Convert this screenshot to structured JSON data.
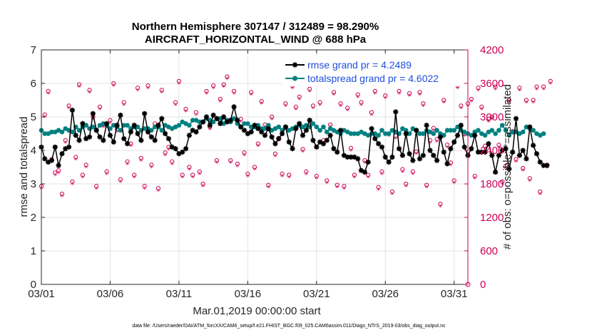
{
  "chart_data": {
    "type": "line",
    "title": "Northern Hemisphere 307147 / 312489 = 98.290%",
    "subtitle": "AIRCRAFT_HORIZONTAL_WIND @ 688 hPa",
    "xlabel": "Mar.01,2019 00:00:00 start",
    "ylabel": "rmse and totalspread",
    "ylabel_right": "# of obs: o=possible; *=assimilated",
    "footnote": "data file: /Users/raeder/DAI/ATM_forcXX/CAM6_setup/f.e21.FHIST_BGC.f09_025.CAM6assim.011/Diags_NTrS_2019-03/obs_diag_output.nc",
    "xlim": [
      0,
      31
    ],
    "ylim": [
      0,
      7
    ],
    "ylim_right": [
      0,
      4200
    ],
    "x_ticks": [
      0,
      5,
      10,
      15,
      20,
      25,
      30
    ],
    "x_tick_labels": [
      "03/01",
      "03/06",
      "03/11",
      "03/16",
      "03/21",
      "03/26",
      "03/31"
    ],
    "y_ticks": [
      0,
      1,
      2,
      3,
      4,
      5,
      6,
      7
    ],
    "y_tick_labels": [
      "0",
      "1",
      "2",
      "3",
      "4",
      "5",
      "6",
      "7"
    ],
    "y_ticks_right": [
      0,
      600,
      1200,
      1800,
      2400,
      3000,
      3600,
      4200
    ],
    "y_tick_labels_right": [
      "0",
      "600",
      "1200",
      "1800",
      "2400",
      "3000",
      "3600",
      "4200"
    ],
    "grid": true,
    "legend": {
      "location": "top-right",
      "entries": [
        "rmse grand pr = 4.2489",
        "totalspread grand pr = 4.6022"
      ]
    },
    "colors": {
      "rmse": "#000000",
      "totalspread": "#008080",
      "obs": "#cc0055",
      "legend_text": "#1f4fe0",
      "grid": "#e3e3e3",
      "axis": "#262626"
    },
    "series": [
      {
        "name": "rmse",
        "step_days": 0.25,
        "values": [
          4.1,
          3.75,
          3.65,
          3.7,
          4.1,
          3.55,
          3.9,
          4.05,
          4.1,
          5.2,
          4.45,
          4.3,
          4.8,
          4.35,
          4.4,
          5.1,
          4.6,
          4.4,
          4.3,
          4.8,
          4.45,
          4.25,
          4.75,
          5.05,
          4.35,
          4.2,
          4.55,
          4.75,
          4.5,
          4.3,
          5.1,
          4.55,
          4.4,
          4.3,
          4.75,
          4.95,
          4.5,
          4.35,
          4.1,
          4.05,
          3.9,
          3.95,
          4.05,
          4.45,
          4.6,
          4.55,
          4.7,
          4.85,
          5.0,
          4.75,
          5.05,
          4.95,
          4.8,
          5.0,
          4.85,
          4.9,
          5.3,
          4.9,
          4.7,
          4.6,
          4.5,
          4.55,
          4.75,
          4.65,
          4.55,
          4.45,
          4.65,
          4.4,
          4.2,
          4.35,
          4.5,
          4.7,
          4.25,
          4.05,
          4.65,
          4.8,
          4.45,
          4.6,
          4.9,
          4.3,
          4.1,
          4.25,
          4.2,
          4.3,
          4.45,
          4.05,
          3.95,
          4.6,
          3.85,
          3.8,
          3.8,
          3.8,
          3.75,
          3.4,
          3.35,
          3.65,
          4.65,
          4.35,
          4.2,
          4.1,
          3.8,
          3.65,
          3.8,
          5.15,
          4.05,
          3.85,
          4.5,
          3.9,
          3.7,
          4.6,
          3.75,
          3.85,
          4.75,
          4.0,
          3.85,
          3.7,
          4.4,
          3.95,
          3.6,
          4.05,
          4.25,
          4.45,
          4.75,
          4.1,
          3.85,
          4.05,
          4.45,
          3.95,
          3.95,
          3.95,
          4.2,
          3.85,
          3.35,
          3.85,
          4.0,
          4.05,
          3.45,
          3.95,
          4.95,
          3.85,
          4.0,
          3.75,
          4.7,
          4.15,
          3.9,
          3.65,
          3.55,
          3.55
        ]
      },
      {
        "name": "totalspread",
        "step_days": 0.25,
        "values": [
          4.6,
          4.5,
          4.5,
          4.55,
          4.55,
          4.6,
          4.55,
          4.65,
          4.6,
          4.55,
          4.7,
          4.6,
          4.7,
          4.75,
          4.65,
          4.7,
          4.6,
          4.75,
          4.8,
          4.75,
          4.65,
          4.75,
          4.7,
          4.6,
          4.75,
          4.75,
          4.65,
          4.7,
          4.7,
          4.6,
          4.65,
          4.65,
          4.6,
          4.7,
          4.7,
          4.6,
          4.75,
          4.7,
          4.65,
          4.7,
          4.75,
          4.85,
          4.8,
          4.75,
          4.9,
          4.9,
          4.85,
          4.85,
          4.95,
          4.9,
          4.85,
          4.95,
          4.95,
          4.8,
          4.9,
          4.85,
          4.95,
          4.8,
          4.7,
          4.8,
          4.8,
          4.7,
          4.7,
          4.75,
          4.65,
          4.65,
          4.75,
          4.6,
          4.65,
          4.7,
          4.6,
          4.7,
          4.6,
          4.65,
          4.7,
          4.75,
          4.7,
          4.75,
          4.7,
          4.8,
          4.7,
          4.6,
          4.7,
          4.55,
          4.65,
          4.6,
          4.55,
          4.5,
          4.6,
          4.55,
          4.5,
          4.5,
          4.5,
          4.55,
          4.5,
          4.45,
          4.5,
          4.5,
          4.45,
          4.6,
          4.5,
          4.5,
          4.6,
          4.55,
          4.5,
          4.65,
          4.6,
          4.5,
          4.65,
          4.6,
          4.5,
          4.5,
          4.6,
          4.55,
          4.5,
          4.6,
          4.5,
          4.45,
          4.6,
          4.6,
          4.6,
          4.7,
          4.6,
          4.55,
          4.5,
          4.45,
          4.55,
          4.6,
          4.5,
          4.45,
          4.55,
          4.6,
          4.5,
          4.6,
          4.75,
          4.6,
          4.45,
          4.55,
          4.55,
          4.5,
          4.55,
          4.7,
          4.65,
          4.6,
          4.5,
          4.45,
          4.5
        ]
      },
      {
        "name": "obs possible (o)",
        "axis": "right",
        "step_days": 0.25,
        "values": [
          1760,
          3040,
          3460,
          2240,
          2000,
          2040,
          1620,
          2580,
          3200,
          1840,
          2280,
          3580,
          1960,
          2140,
          3480,
          3000,
          1760,
          3180,
          2860,
          2020,
          2940,
          3600,
          2780,
          1880,
          3260,
          2200,
          2520,
          1960,
          3520,
          2260,
          1760,
          3560,
          2140,
          2880,
          1720,
          3480,
          2360,
          2460,
          2200,
          3260,
          3640,
          1960,
          3140,
          2100,
          1960,
          3080,
          2020,
          1800,
          3460,
          2820,
          3560,
          2220,
          3320,
          3580,
          3720,
          2220,
          3460,
          2160,
          2960,
          2360,
          1980,
          3440,
          2100,
          2520,
          3280,
          2860,
          1780,
          3000,
          2340,
          2620,
          1980,
          3240,
          1960,
          3560,
          3180,
          3360,
          2420,
          2020,
          3500,
          3200,
          1940,
          3260,
          2580,
          1860,
          2860,
          3440,
          1780,
          3240,
          1760,
          3160,
          2440,
          1960,
          3400,
          3260,
          2220,
          1960,
          3080,
          3460,
          1740,
          2020,
          3380,
          2700,
          1660,
          2660,
          3460,
          2060,
          1800,
          3420,
          2020,
          2380,
          3440,
          3240,
          1780,
          2580,
          2800,
          2600,
          1440,
          3300,
          2500,
          2180,
          1860,
          3560,
          3200,
          2700,
          3240,
          3320,
          1940,
          3520,
          3180,
          2480,
          2960,
          3000,
          3540,
          2500,
          1840,
          2120,
          3300,
          2740,
          2240,
          3520,
          2080,
          3300,
          1900,
          3300,
          3540,
          1660,
          3540,
          2140,
          3640
        ]
      },
      {
        "name": "obs assimilated (*)",
        "axis": "right",
        "step_days": 0.25,
        "values": [
          1720,
          3000,
          3420,
          2200,
          1960,
          2000,
          1580,
          2540,
          3160,
          1800,
          2240,
          3540,
          1920,
          2100,
          3440,
          2960,
          1720,
          3140,
          2820,
          1980,
          2900,
          3560,
          2740,
          1840,
          3220,
          2160,
          2480,
          1920,
          3480,
          2220,
          1720,
          3520,
          2100,
          2840,
          1680,
          3440,
          2320,
          2420,
          2160,
          3220,
          3600,
          1920,
          3100,
          2060,
          1920,
          3040,
          1980,
          1760,
          3420,
          2780,
          3520,
          2180,
          3280,
          3540,
          3680,
          2180,
          3420,
          2120,
          2920,
          2320,
          1940,
          3400,
          2060,
          2480,
          3240,
          2820,
          1740,
          2960,
          2300,
          2580,
          1940,
          3200,
          1920,
          3520,
          3140,
          3320,
          2380,
          1980,
          3460,
          3160,
          1900,
          3220,
          2540,
          1820,
          2820,
          3400,
          1740,
          3200,
          1720,
          3120,
          2400,
          1920,
          3360,
          3220,
          2180,
          1920,
          3040,
          3420,
          1700,
          1980,
          3340,
          2660,
          1620,
          2620,
          3420,
          2020,
          1760,
          3380,
          1980,
          2340,
          3400,
          3200,
          1740,
          2540,
          2760,
          2560,
          1400,
          3260,
          2460,
          2140,
          1820,
          3520,
          3160,
          2660,
          3200,
          3280,
          1900,
          3480,
          3140,
          2440,
          2920,
          2960,
          3500,
          2460,
          1800,
          2080,
          3260,
          2700,
          2200,
          3480,
          2040,
          3260,
          1860,
          3260,
          3500,
          1620,
          3500,
          2100,
          3600
        ]
      }
    ]
  }
}
